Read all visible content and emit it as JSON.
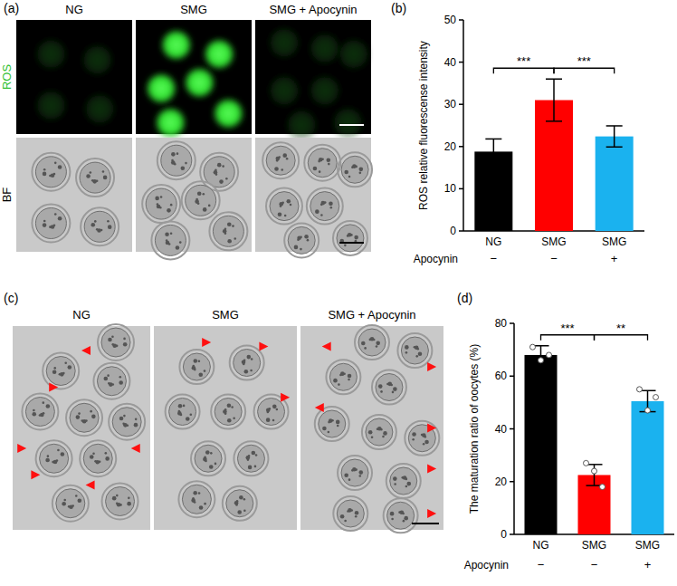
{
  "panels": {
    "a": {
      "label": "(a)",
      "columns": [
        "NG",
        "SMG",
        "SMG + Apocynin"
      ],
      "rows": [
        "ROS",
        "BF"
      ]
    },
    "c": {
      "label": "(c)",
      "columns": [
        "NG",
        "SMG",
        "SMG + Apocynin"
      ]
    }
  },
  "chart_data": [
    {
      "type": "bar",
      "label": "(b)",
      "y_label": "ROS relative fluorescense intensity",
      "categories": [
        "NG",
        "SMG",
        "SMG"
      ],
      "values": [
        18.8,
        31,
        22.4
      ],
      "errors": [
        3,
        5,
        2.5
      ],
      "colors": [
        "#000000",
        "#ff0000",
        "#1ab2ef"
      ],
      "ylim": [
        0,
        50
      ],
      "yticks": [
        0,
        10,
        20,
        30,
        40,
        50
      ],
      "row_label": "Apocynin",
      "row_values": [
        "−",
        "−",
        "+"
      ],
      "annotations": [
        {
          "text": "***",
          "between": [
            0,
            1
          ]
        },
        {
          "text": "***",
          "between": [
            1,
            2
          ]
        }
      ]
    },
    {
      "type": "bar",
      "label": "(d)",
      "y_label": "The maturation ratio of oocytes (%)",
      "categories": [
        "NG",
        "SMG",
        "SMG"
      ],
      "values": [
        68,
        22.5,
        50.5
      ],
      "errors": [
        3.5,
        4,
        4
      ],
      "points": [
        [
          71,
          66,
          68
        ],
        [
          27,
          24,
          18
        ],
        [
          55,
          47,
          52
        ]
      ],
      "colors": [
        "#000000",
        "#ff0000",
        "#1ab2ef"
      ],
      "ylim": [
        0,
        80
      ],
      "yticks": [
        0,
        20,
        40,
        60,
        80
      ],
      "row_label": "Apocynin",
      "row_values": [
        "−",
        "−",
        "+"
      ],
      "annotations": [
        {
          "text": "***",
          "between": [
            0,
            1
          ]
        },
        {
          "text": "**",
          "between": [
            1,
            2
          ]
        }
      ]
    }
  ]
}
